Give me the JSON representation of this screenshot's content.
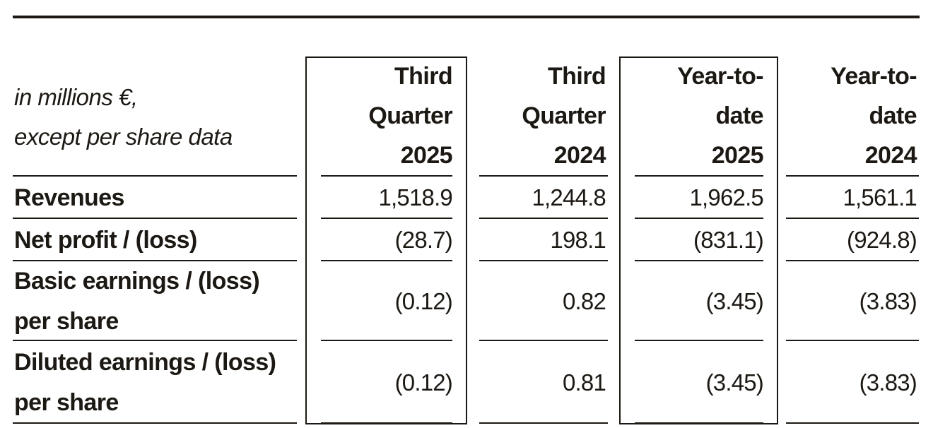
{
  "colors": {
    "ink": "#1c1813",
    "background": "#ffffff"
  },
  "table": {
    "corner_note": "in millions €,\nexcept per share data",
    "columns": [
      {
        "label": "Third\nQuarter\n2025",
        "highlighted": true
      },
      {
        "label": "Third\nQuarter\n2024",
        "highlighted": false
      },
      {
        "label": "Year-to-\ndate\n2025",
        "highlighted": true
      },
      {
        "label": "Year-to-\ndate\n2024",
        "highlighted": false
      }
    ],
    "rows": [
      {
        "label": "Revenues",
        "values": [
          "1,518.9",
          "1,244.8",
          "1,962.5",
          "1,561.1"
        ]
      },
      {
        "label": "Net profit / (loss)",
        "values": [
          "(28.7)",
          "198.1",
          "(831.1)",
          "(924.8)"
        ]
      },
      {
        "label": "Basic earnings / (loss)\nper share",
        "values": [
          "(0.12)",
          "0.82",
          "(3.45)",
          "(3.83)"
        ]
      },
      {
        "label": "Diluted earnings / (loss)\nper share",
        "values": [
          "(0.12)",
          "0.81",
          "(3.45)",
          "(3.83)"
        ]
      }
    ]
  }
}
